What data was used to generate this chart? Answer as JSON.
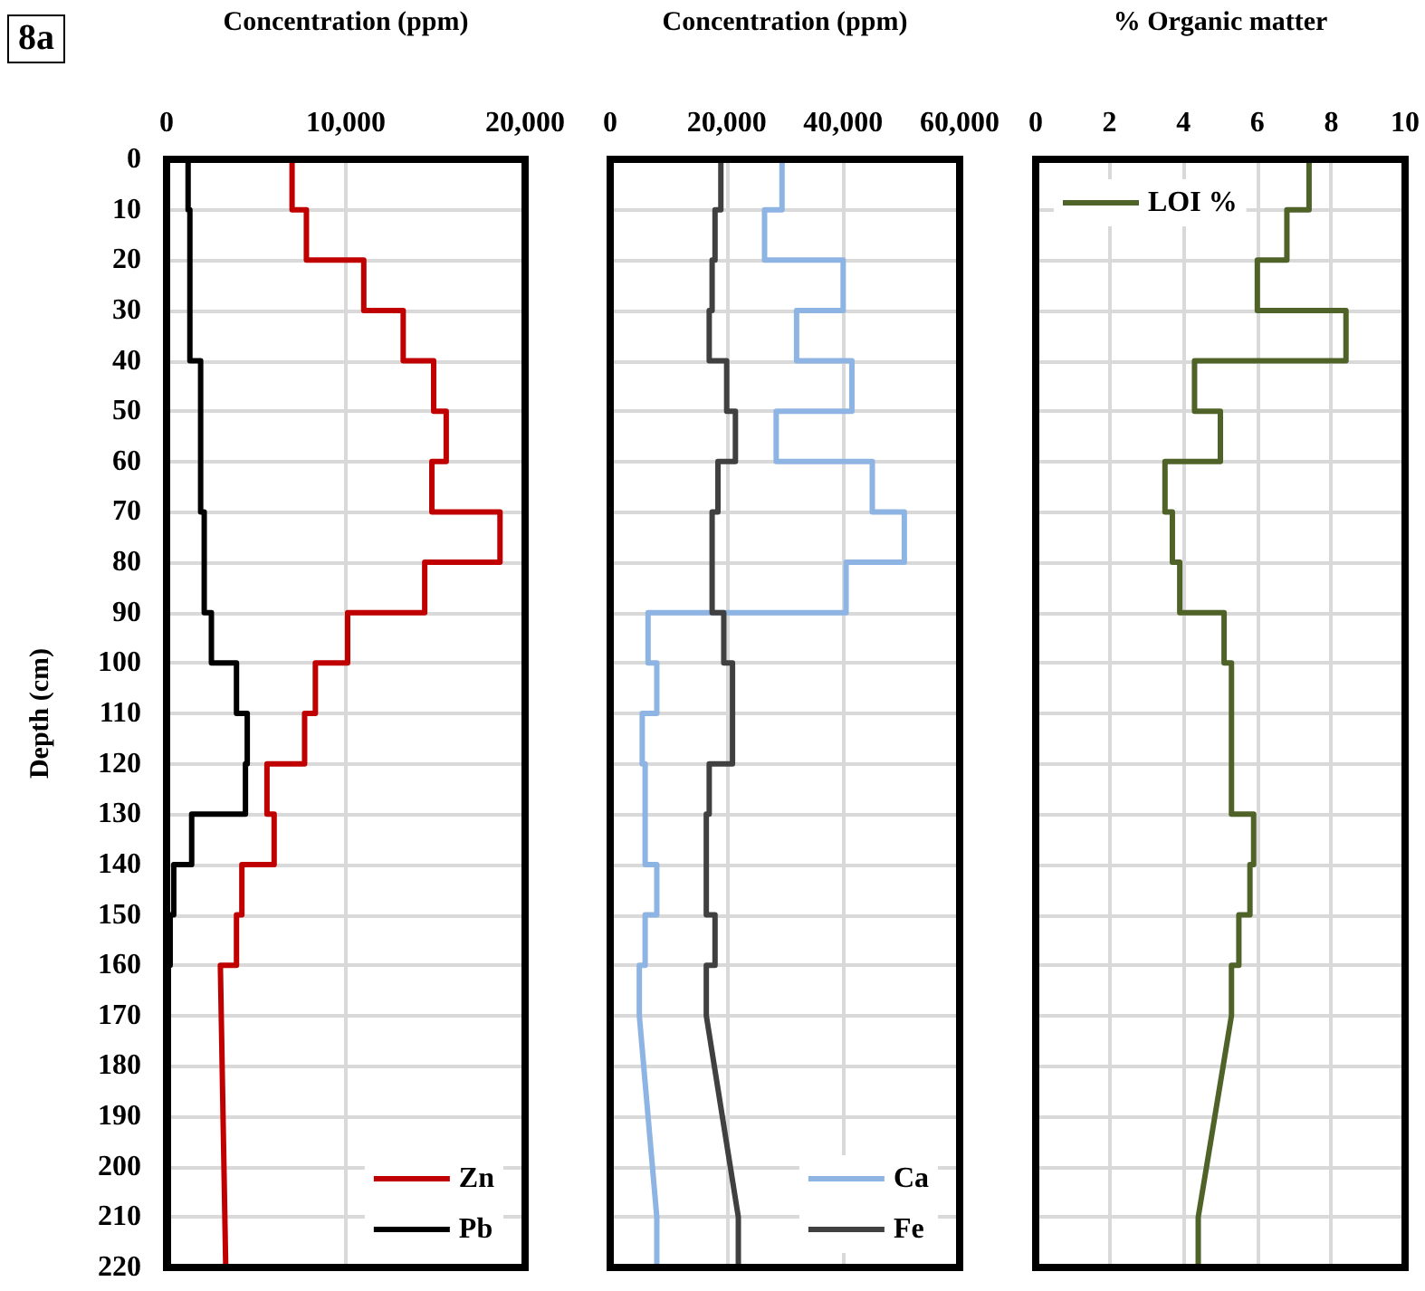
{
  "chart_data": [
    {
      "type": "line",
      "xlabel": "Concentration (ppm)",
      "ylabel": "Depth (cm)",
      "annotations": [
        "8a"
      ],
      "xlim": [
        0,
        20000
      ],
      "xticks": [
        0,
        {
          "value": 10000,
          "label": "10,000"
        },
        {
          "value": 20000,
          "label": "20,000"
        }
      ],
      "ylim": [
        220,
        0
      ],
      "yticks": [
        0,
        10,
        20,
        30,
        40,
        50,
        60,
        70,
        80,
        90,
        100,
        110,
        120,
        130,
        140,
        150,
        160,
        170,
        180,
        190,
        200,
        210,
        220
      ],
      "grid": true,
      "legend": "bottom right",
      "marker": "none",
      "series": [
        {
          "name": "Zn",
          "color": "#c00000",
          "x": [
            7000,
            7000,
            7800,
            7800,
            11000,
            11000,
            13200,
            13200,
            14900,
            14900,
            15600,
            15600,
            14800,
            14800,
            18600,
            18600,
            14400,
            14400,
            10100,
            10100,
            8300,
            8300,
            7700,
            7700,
            5600,
            5600,
            6000,
            6000,
            4200,
            4200,
            3900,
            3900,
            3000,
            3300
          ],
          "values": [
            0,
            10,
            10,
            20,
            20,
            30,
            30,
            40,
            40,
            50,
            50,
            60,
            60,
            70,
            70,
            80,
            80,
            90,
            90,
            100,
            100,
            110,
            110,
            120,
            120,
            130,
            130,
            140,
            140,
            150,
            150,
            160,
            160,
            220
          ]
        },
        {
          "name": "Pb",
          "color": "#000000",
          "x": [
            1200,
            1200,
            1300,
            1300,
            1300,
            1300,
            1300,
            1300,
            1900,
            1900,
            1900,
            1900,
            1900,
            1900,
            2100,
            2100,
            2100,
            2100,
            2500,
            2500,
            3900,
            3900,
            4500,
            4500,
            4400,
            4400,
            1400,
            1400,
            400,
            400,
            200,
            200,
            100,
            100
          ],
          "values": [
            0,
            10,
            10,
            20,
            20,
            30,
            30,
            40,
            40,
            50,
            50,
            60,
            60,
            70,
            70,
            80,
            80,
            90,
            90,
            100,
            100,
            110,
            110,
            120,
            120,
            130,
            130,
            140,
            140,
            150,
            150,
            160,
            160,
            220
          ]
        }
      ]
    },
    {
      "type": "line",
      "xlabel": "Concentration (ppm)",
      "xlim": [
        0,
        60000
      ],
      "xticks": [
        0,
        {
          "value": 20000,
          "label": "20,000"
        },
        {
          "value": 40000,
          "label": "40,000"
        },
        {
          "value": 60000,
          "label": "60,000"
        }
      ],
      "ylim": [
        220,
        0
      ],
      "yticks": [
        0,
        10,
        20,
        30,
        40,
        50,
        60,
        70,
        80,
        90,
        100,
        110,
        120,
        130,
        140,
        150,
        160,
        170,
        180,
        190,
        200,
        210,
        220
      ],
      "tick_labels": "x",
      "grid": true,
      "legend": "bottom right",
      "marker": "none",
      "series": [
        {
          "name": "Ca",
          "color": "#8eb4e3",
          "x": [
            29500,
            29500,
            26500,
            26500,
            40000,
            40000,
            32000,
            32000,
            41500,
            41500,
            28500,
            28500,
            45000,
            45000,
            50500,
            50500,
            40500,
            40500,
            6500,
            6500,
            8000,
            8000,
            5500,
            5500,
            6000,
            6000,
            6000,
            6000,
            8000,
            8000,
            6000,
            6000,
            5000,
            5000,
            8000,
            8000
          ],
          "values": [
            0,
            10,
            10,
            20,
            20,
            30,
            30,
            40,
            40,
            50,
            50,
            60,
            60,
            70,
            70,
            80,
            80,
            90,
            90,
            100,
            100,
            110,
            110,
            120,
            120,
            130,
            130,
            140,
            140,
            150,
            150,
            160,
            160,
            170,
            210,
            220
          ]
        },
        {
          "name": "Fe",
          "color": "#404040",
          "x": [
            19000,
            19000,
            18000,
            18000,
            17500,
            17500,
            17000,
            17000,
            20000,
            20000,
            21500,
            21500,
            18500,
            18500,
            17500,
            17500,
            17500,
            17500,
            19500,
            19500,
            21000,
            21000,
            21000,
            21000,
            17000,
            17000,
            16500,
            16500,
            16500,
            16500,
            18000,
            18000,
            16500,
            16500,
            22000,
            22000
          ],
          "values": [
            0,
            10,
            10,
            20,
            20,
            30,
            30,
            40,
            40,
            50,
            50,
            60,
            60,
            70,
            70,
            80,
            80,
            90,
            90,
            100,
            100,
            110,
            110,
            120,
            120,
            130,
            130,
            140,
            140,
            150,
            150,
            160,
            160,
            170,
            210,
            220
          ]
        }
      ]
    },
    {
      "type": "line",
      "xlabel": "% Organic matter",
      "xlim": [
        0,
        10
      ],
      "xticks": [
        0,
        2,
        4,
        6,
        8,
        10
      ],
      "ylim": [
        220,
        0
      ],
      "yticks": [
        0,
        10,
        20,
        30,
        40,
        50,
        60,
        70,
        80,
        90,
        100,
        110,
        120,
        130,
        140,
        150,
        160,
        170,
        180,
        190,
        200,
        210,
        220
      ],
      "tick_labels": "x",
      "grid": true,
      "legend": "top left",
      "marker": "none",
      "series": [
        {
          "name": "LOI %",
          "color": "#4f6228",
          "x": [
            7.4,
            7.4,
            6.8,
            6.8,
            6.0,
            6.0,
            8.4,
            8.4,
            4.3,
            4.3,
            5.0,
            5.0,
            3.5,
            3.5,
            3.7,
            3.7,
            3.9,
            3.9,
            5.1,
            5.1,
            5.3,
            5.3,
            5.3,
            5.3,
            5.3,
            5.3,
            5.9,
            5.9,
            5.8,
            5.8,
            5.5,
            5.5,
            5.3,
            5.3,
            4.4,
            4.4
          ],
          "values": [
            0,
            10,
            10,
            20,
            20,
            30,
            30,
            40,
            40,
            50,
            50,
            60,
            60,
            70,
            70,
            80,
            80,
            90,
            90,
            100,
            100,
            110,
            110,
            120,
            120,
            130,
            130,
            140,
            140,
            150,
            150,
            160,
            160,
            170,
            210,
            220
          ]
        }
      ]
    }
  ]
}
